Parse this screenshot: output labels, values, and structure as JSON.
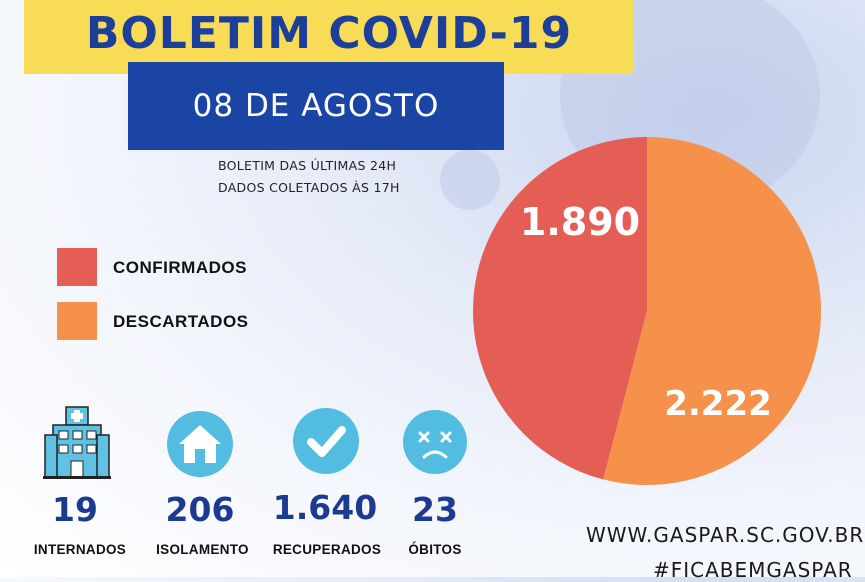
{
  "header": {
    "title": "BOLETIM COVID-19",
    "date": "08 DE AGOSTO",
    "subtitle_line1": "BOLETIM DAS ÚLTIMAS 24H",
    "subtitle_line2": "DADOS COLETADOS ÀS  17H"
  },
  "colors": {
    "confirmados": "#e45e55",
    "descartados": "#f6914b",
    "title_bg": "#f8dc55",
    "date_bg": "#1b45a4",
    "icon_bg": "#52bde0",
    "stat_value": "#1c3a8f"
  },
  "chart_data": {
    "type": "pie",
    "title": "",
    "labels": [
      "CONFIRMADOS",
      "DESCARTADOS"
    ],
    "values": [
      1890,
      2222
    ],
    "value_labels": [
      "1.890",
      "2.222"
    ],
    "legend": "left"
  },
  "stats": [
    {
      "icon": "hospital-icon",
      "value": "19",
      "label": "INTERNADOS"
    },
    {
      "icon": "house-icon",
      "value": "206",
      "label": "ISOLAMENTO"
    },
    {
      "icon": "checkmark-icon",
      "value": "1.640",
      "label": "RECUPERADOS"
    },
    {
      "icon": "sad-face-icon",
      "value": "23",
      "label": "ÓBITOS"
    }
  ],
  "footer": {
    "website": "WWW.GASPAR.SC.GOV.BR",
    "hashtag": "#FICABEMGASPAR"
  }
}
